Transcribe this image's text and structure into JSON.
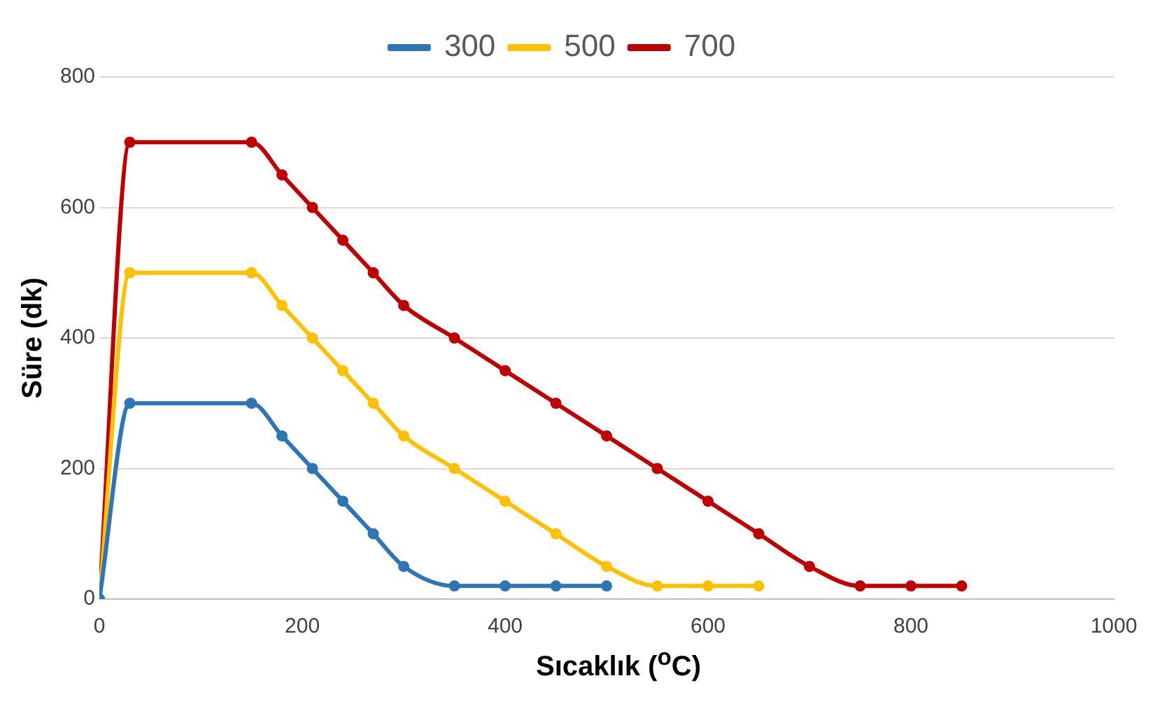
{
  "chart_data": {
    "type": "line",
    "xlabel": "Sıcaklık ($^{o}$C)",
    "ylabel": "Süre (dk)",
    "xlim": [
      0,
      1000
    ],
    "xticks": [
      0,
      200,
      400,
      600,
      800,
      1000
    ],
    "ylim": [
      0,
      800
    ],
    "yticks": [
      0,
      200,
      400,
      600,
      800
    ],
    "grid": "y",
    "legend": "top",
    "marker": "circle",
    "line_style": "solid",
    "series": [
      {
        "name": "300",
        "color": "#2e75b6",
        "x": [
          0,
          30,
          150,
          180,
          210,
          240,
          270,
          300,
          350,
          400,
          450,
          500
        ],
        "values": [
          0,
          300,
          300,
          250,
          200,
          150,
          100,
          50,
          20,
          20,
          20,
          20
        ]
      },
      {
        "name": "500",
        "color": "#ffc000",
        "x": [
          0,
          30,
          150,
          180,
          210,
          240,
          270,
          300,
          350,
          400,
          450,
          500,
          550,
          600,
          650
        ],
        "values": [
          0,
          500,
          500,
          450,
          400,
          350,
          300,
          250,
          200,
          150,
          100,
          50,
          20,
          20,
          20
        ]
      },
      {
        "name": "700",
        "color": "#c00000",
        "x": [
          0,
          30,
          150,
          180,
          210,
          240,
          270,
          300,
          350,
          400,
          450,
          500,
          550,
          600,
          650,
          700,
          750,
          800,
          850
        ],
        "values": [
          0,
          700,
          700,
          650,
          600,
          550,
          500,
          450,
          400,
          350,
          300,
          250,
          200,
          150,
          100,
          50,
          20,
          20,
          20
        ]
      }
    ]
  }
}
